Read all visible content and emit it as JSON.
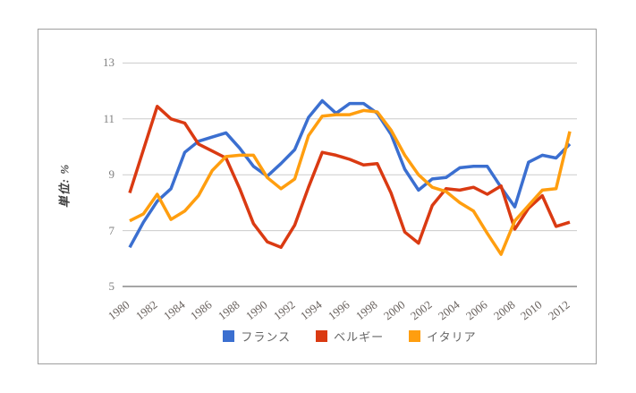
{
  "figure": {
    "background": "#ffffff",
    "border_color": "#9e9e9e",
    "gridline_color": "#cccccc",
    "axisline_color": "#4d4d4d",
    "tick_label_color": "#808080"
  },
  "chart_data": {
    "type": "line",
    "title": "",
    "ylabel": "単位: %",
    "xlabel": "",
    "ylim": [
      5,
      13
    ],
    "yticks": [
      13,
      11,
      9,
      7,
      5
    ],
    "grid": true,
    "legend_position": "bottom",
    "x": [
      1980,
      1981,
      1982,
      1983,
      1984,
      1985,
      1986,
      1987,
      1988,
      1989,
      1990,
      1991,
      1992,
      1993,
      1994,
      1995,
      1996,
      1997,
      1998,
      1999,
      2000,
      2001,
      2002,
      2003,
      2004,
      2005,
      2006,
      2007,
      2008,
      2009,
      2010,
      2011,
      2012
    ],
    "x_tick_labels": [
      "1980",
      "1982",
      "1984",
      "1986",
      "1988",
      "1990",
      "1992",
      "1994",
      "1996",
      "1998",
      "2000",
      "2002",
      "2004",
      "2006",
      "2008",
      "2010",
      "2012"
    ],
    "series": [
      {
        "name": "フランス",
        "color": "#3B6FD0",
        "values": [
          6.4,
          7.3,
          8.05,
          8.5,
          9.8,
          10.2,
          10.35,
          10.5,
          9.95,
          9.3,
          8.95,
          9.4,
          9.9,
          11.05,
          11.65,
          11.2,
          11.55,
          11.55,
          11.2,
          10.45,
          9.2,
          8.45,
          8.85,
          8.9,
          9.25,
          9.3,
          9.3,
          8.55,
          7.85,
          9.45,
          9.7,
          9.6,
          10.1
        ]
      },
      {
        "name": "ベルギー",
        "color": "#DA3A12",
        "values": [
          8.35,
          9.9,
          11.45,
          11.0,
          10.85,
          10.1,
          9.85,
          9.6,
          8.5,
          7.25,
          6.6,
          6.4,
          7.2,
          8.55,
          9.8,
          9.7,
          9.55,
          9.35,
          9.4,
          8.35,
          6.95,
          6.55,
          7.9,
          8.5,
          8.45,
          8.55,
          8.3,
          8.6,
          7.05,
          7.8,
          8.25,
          7.15,
          7.3
        ]
      },
      {
        "name": "イタリア",
        "color": "#FF9E0F",
        "values": [
          7.35,
          7.6,
          8.3,
          7.4,
          7.7,
          8.25,
          9.15,
          9.65,
          9.7,
          9.7,
          8.9,
          8.5,
          8.85,
          10.4,
          11.1,
          11.15,
          11.15,
          11.3,
          11.25,
          10.6,
          9.7,
          9.0,
          8.55,
          8.4,
          8.0,
          7.7,
          6.9,
          6.15,
          7.35,
          7.9,
          8.45,
          8.5,
          10.55
        ]
      }
    ]
  }
}
